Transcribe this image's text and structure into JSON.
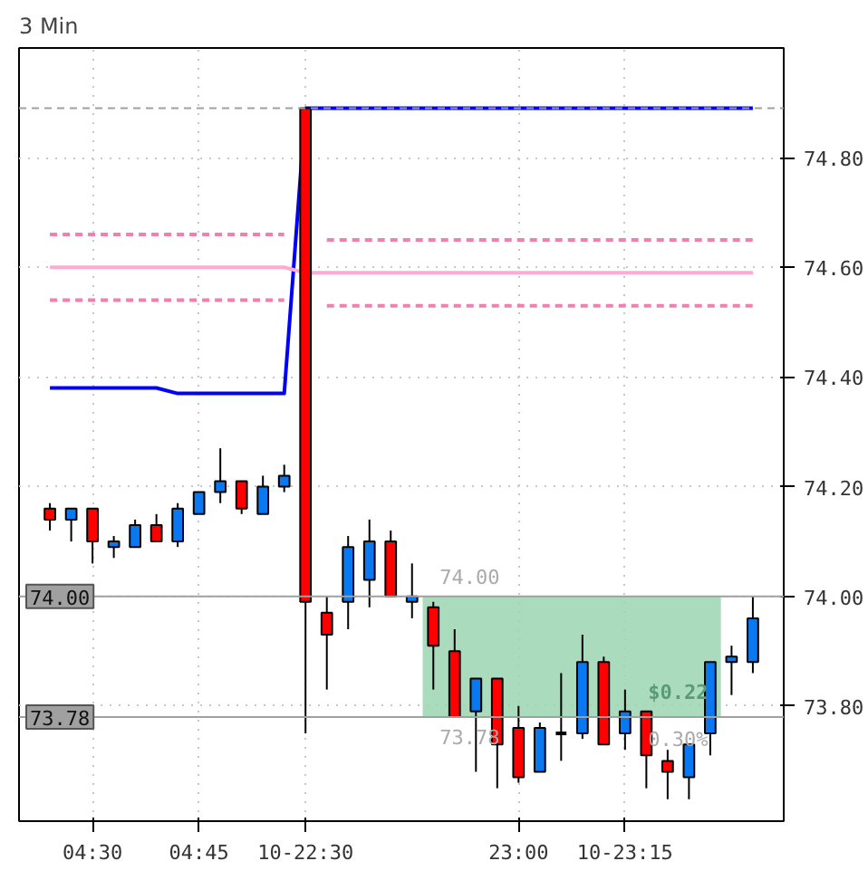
{
  "chart_data": {
    "type": "candlestick",
    "title": "3 Min",
    "categories": [
      null,
      null,
      "04:30",
      null,
      null,
      null,
      null,
      "04:45",
      null,
      null,
      null,
      null,
      "10-22:30",
      null,
      null,
      null,
      null,
      null,
      null,
      null,
      null,
      null,
      "23:00",
      null,
      null,
      null,
      null,
      "10-23:15",
      null,
      null,
      null,
      null,
      null,
      null
    ],
    "ohlc": [
      [
        74.16,
        74.17,
        74.12,
        74.14
      ],
      [
        74.14,
        74.16,
        74.1,
        74.16
      ],
      [
        74.16,
        74.16,
        74.06,
        74.1
      ],
      [
        74.09,
        74.11,
        74.07,
        74.1
      ],
      [
        74.09,
        74.14,
        74.09,
        74.13
      ],
      [
        74.13,
        74.15,
        74.1,
        74.1
      ],
      [
        74.1,
        74.17,
        74.09,
        74.16
      ],
      [
        74.15,
        74.19,
        74.15,
        74.19
      ],
      [
        74.19,
        74.27,
        74.17,
        74.21
      ],
      [
        74.21,
        74.21,
        74.15,
        74.16
      ],
      [
        74.15,
        74.22,
        74.15,
        74.2
      ],
      [
        74.2,
        74.24,
        74.19,
        74.22
      ],
      [
        74.89,
        74.89,
        73.75,
        73.99
      ],
      [
        73.97,
        74.0,
        73.83,
        73.93
      ],
      [
        73.99,
        74.11,
        73.94,
        74.09
      ],
      [
        74.03,
        74.14,
        73.98,
        74.1
      ],
      [
        74.1,
        74.12,
        74.0,
        74.0
      ],
      [
        73.99,
        74.06,
        73.96,
        74.0
      ],
      [
        73.98,
        73.99,
        73.83,
        73.91
      ],
      [
        73.9,
        73.94,
        73.78,
        73.78
      ],
      [
        73.79,
        73.85,
        73.68,
        73.85
      ],
      [
        73.85,
        73.85,
        73.65,
        73.73
      ],
      [
        73.76,
        73.8,
        73.66,
        73.67
      ],
      [
        73.68,
        73.77,
        73.68,
        73.76
      ],
      [
        73.75,
        73.86,
        73.7,
        73.75
      ],
      [
        73.75,
        73.93,
        73.74,
        73.88
      ],
      [
        73.88,
        73.89,
        73.73,
        73.73
      ],
      [
        73.75,
        73.83,
        73.72,
        73.79
      ],
      [
        73.79,
        73.79,
        73.65,
        73.71
      ],
      [
        73.7,
        73.72,
        73.63,
        73.68
      ],
      [
        73.67,
        73.73,
        73.63,
        73.73
      ],
      [
        73.75,
        73.88,
        73.71,
        73.88
      ],
      [
        73.88,
        73.91,
        73.82,
        73.89
      ],
      [
        73.88,
        74.0,
        73.86,
        73.96
      ]
    ],
    "colors": [
      "#ff0000",
      "#0a78f0",
      "#ff0000",
      "#0a78f0",
      "#0a78f0",
      "#ff0000",
      "#0a78f0",
      "#0a78f0",
      "#0a78f0",
      "#ff0000",
      "#0a78f0",
      "#0a78f0",
      "#ff0000",
      "#ff0000",
      "#0a78f0",
      "#0a78f0",
      "#ff0000",
      "#0a78f0",
      "#ff0000",
      "#ff0000",
      "#0a78f0",
      "#ff0000",
      "#ff0000",
      "#0a78f0",
      "#000000",
      "#0a78f0",
      "#ff0000",
      "#0a78f0",
      "#ff0000",
      "#ff0000",
      "#0a78f0",
      "#0a78f0",
      "#0a78f0",
      "#0a78f0"
    ],
    "series": [
      {
        "type": "line",
        "color": "#0000ff",
        "values": [
          74.38,
          74.38,
          74.38,
          74.38,
          74.38,
          74.38,
          74.37,
          74.37,
          74.37,
          74.37,
          74.37,
          74.37,
          74.89,
          74.89,
          74.89,
          74.89,
          74.89,
          74.89,
          74.89,
          74.89,
          74.89,
          74.89,
          74.89,
          74.89,
          74.89,
          74.89,
          74.89,
          74.89,
          74.89,
          74.89,
          74.89,
          74.89,
          74.89,
          74.89
        ]
      },
      {
        "type": "line",
        "color": "#f080b0",
        "line_style": "dashed",
        "values": [
          74.66,
          74.66,
          74.66,
          74.66,
          74.66,
          74.66,
          74.66,
          74.66,
          74.66,
          74.66,
          74.66,
          74.66,
          null,
          74.65,
          74.65,
          74.65,
          74.65,
          74.65,
          74.65,
          74.65,
          74.65,
          74.65,
          74.65,
          74.65,
          74.65,
          74.65,
          74.65,
          74.65,
          74.65,
          74.65,
          74.65,
          74.65,
          74.65,
          74.65
        ]
      },
      {
        "type": "line",
        "color": "#ffaad5",
        "line_style": "solid",
        "values": [
          74.6,
          74.6,
          74.6,
          74.6,
          74.6,
          74.6,
          74.6,
          74.6,
          74.6,
          74.6,
          74.6,
          74.6,
          74.59,
          74.59,
          74.59,
          74.59,
          74.59,
          74.59,
          74.59,
          74.59,
          74.59,
          74.59,
          74.59,
          74.59,
          74.59,
          74.59,
          74.59,
          74.59,
          74.59,
          74.59,
          74.59,
          74.59,
          74.59,
          74.59
        ]
      },
      {
        "type": "line",
        "color": "#f080b0",
        "line_style": "dashed",
        "values": [
          74.54,
          74.54,
          74.54,
          74.54,
          74.54,
          74.54,
          74.54,
          74.54,
          74.54,
          74.54,
          74.54,
          74.54,
          null,
          74.53,
          74.53,
          74.53,
          74.53,
          74.53,
          74.53,
          74.53,
          74.53,
          74.53,
          74.53,
          74.53,
          74.53,
          74.53,
          74.53,
          74.53,
          74.53,
          74.53,
          74.53,
          74.53,
          74.53,
          74.53
        ]
      }
    ],
    "ylim": [
      73.59,
      75.0
    ],
    "yticks": [
      {
        "value": 73.8,
        "label": "73.80"
      },
      {
        "value": 74.0,
        "label": "74.00"
      },
      {
        "value": 74.2,
        "label": "74.20"
      },
      {
        "value": 74.4,
        "label": "74.40"
      },
      {
        "value": 74.6,
        "label": "74.60"
      },
      {
        "value": 74.8,
        "label": "74.80"
      }
    ],
    "grid": true,
    "ref_lines": [
      {
        "axis": "y",
        "value": 74.89,
        "label": null,
        "color": "#a0a0a0",
        "line_style": "dashed"
      },
      {
        "axis": "y",
        "value": 74.0,
        "label": "74.00",
        "color": "#a0a0a0",
        "line_style": "solid"
      },
      {
        "axis": "y",
        "value": 73.78,
        "label": "73.78",
        "color": "#a0a0a0",
        "line_style": "solid"
      }
    ],
    "bands": [
      {
        "axis": "y",
        "from": 73.78,
        "to": 74.0,
        "color": "#9ad5b0"
      }
    ],
    "annotations": [
      "74.00",
      "73.78",
      "$0.22",
      "0.30%"
    ]
  }
}
